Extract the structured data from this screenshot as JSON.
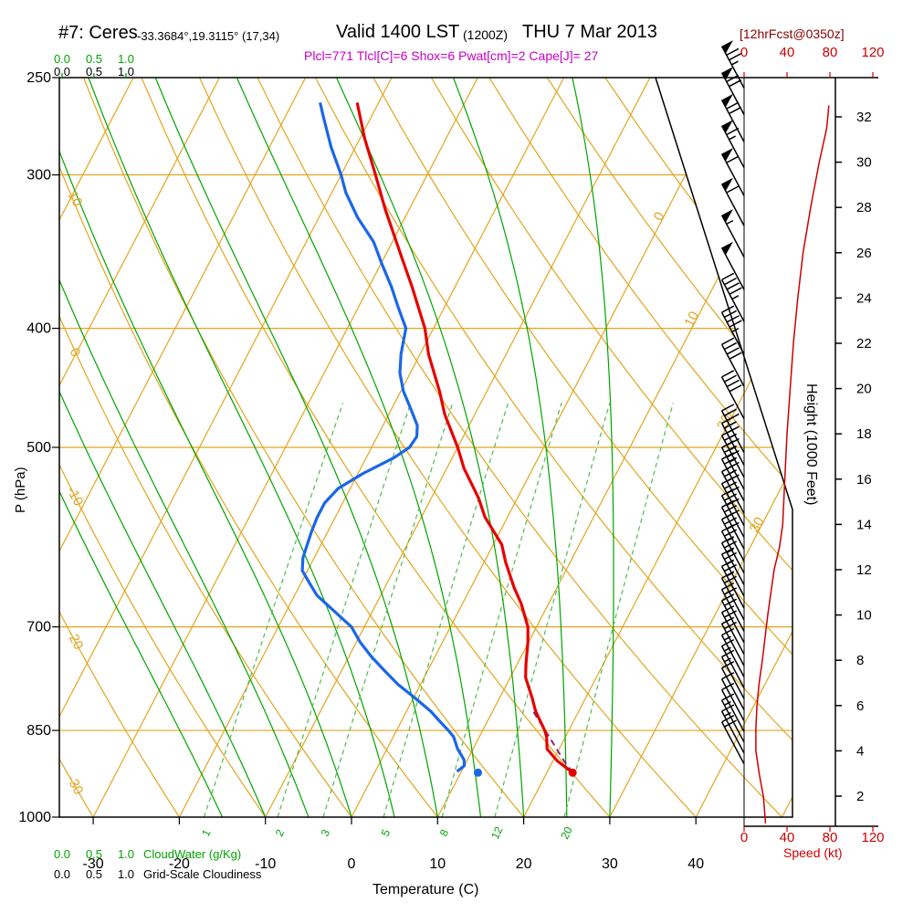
{
  "header": {
    "station": "#7: Ceres",
    "coords": "-33.3684°,19.3115° (17,34)",
    "valid": "Valid 1400 LST",
    "valid_z": "(1200Z)",
    "valid_date": "THU 7 Mar 2013",
    "fcst": "[12hrFcst@0350z]",
    "params": "Plcl=771 Tlcl[C]=6 Shox=6 Pwat[cm]=2 Cape[J]= 27"
  },
  "axes": {
    "pressure_label": "P (hPa)",
    "pressure_ticks": [
      250,
      300,
      400,
      500,
      700,
      850,
      1000
    ],
    "temp_label": "Temperature (C)",
    "temp_ticks": [
      -30,
      -20,
      -10,
      0,
      10,
      20,
      30,
      40
    ],
    "height_label": "Height (1000 Feet)",
    "height_ticks": [
      2,
      4,
      6,
      8,
      10,
      12,
      14,
      16,
      18,
      20,
      22,
      24,
      26,
      28,
      30,
      32
    ],
    "speed_label": "Speed (kt)",
    "speed_ticks": [
      0,
      40,
      80,
      120
    ],
    "cloud_scale_values": [
      "0.0",
      "0.5",
      "1.0"
    ],
    "cloudwater_label": "CloudWater (g/Kg)",
    "cloudiness_label": "Grid-Scale Cloudiness"
  },
  "colors": {
    "grid_orange": "#E2A51F",
    "moist_green": "#00A400",
    "mixing_green": "#4FBB4F",
    "temp_red": "#E60000",
    "dew_blue": "#1A66E8",
    "speed_red": "#CC0000",
    "parcel_purple": "#7B2D8B",
    "magenta": "#C800C8",
    "maroon": "#8B0000"
  },
  "chart_data": {
    "type": "line",
    "chart_kind": "skew-t log-p atmospheric sounding",
    "pressure_range_hPa": [
      250,
      1000
    ],
    "isotherm_values_C": [
      -90,
      -80,
      -70,
      -60,
      -50,
      -40,
      -30,
      -20,
      -10,
      0,
      10,
      20,
      30,
      40,
      50
    ],
    "isotherm_label_values": [
      0,
      10,
      20,
      30
    ],
    "dry_adiabat_values_C": [
      -30,
      -20,
      -10,
      0,
      10,
      20,
      30,
      40,
      50,
      60,
      70,
      80,
      90,
      100,
      110,
      120
    ],
    "dry_adiabat_label_values": [
      10,
      0,
      -10,
      -20,
      -30
    ],
    "moist_adiabat_values_C": [
      -15,
      -10,
      -5,
      0,
      5,
      10,
      15,
      20,
      25,
      30
    ],
    "mixing_ratio_values_gkg": [
      1,
      2,
      3,
      5,
      8,
      12,
      20
    ],
    "temperature_profile_p_T": [
      [
        920,
        23
      ],
      [
        900,
        20.5
      ],
      [
        880,
        18.6
      ],
      [
        860,
        17.8
      ],
      [
        850,
        17.2
      ],
      [
        820,
        15
      ],
      [
        800,
        13.8
      ],
      [
        770,
        11.8
      ],
      [
        750,
        11
      ],
      [
        720,
        9.9
      ],
      [
        700,
        9
      ],
      [
        670,
        6.8
      ],
      [
        650,
        5
      ],
      [
        620,
        2.5
      ],
      [
        600,
        1
      ],
      [
        570,
        -2.6
      ],
      [
        550,
        -4.5
      ],
      [
        520,
        -8
      ],
      [
        500,
        -10
      ],
      [
        470,
        -13.5
      ],
      [
        450,
        -15.5
      ],
      [
        420,
        -19
      ],
      [
        400,
        -21
      ],
      [
        370,
        -25
      ],
      [
        350,
        -28
      ],
      [
        320,
        -32.8
      ],
      [
        300,
        -36
      ],
      [
        280,
        -39.5
      ],
      [
        262,
        -42.5
      ]
    ],
    "dewpoint_profile_p_T": [
      [
        918,
        9.5
      ],
      [
        908,
        10
      ],
      [
        898,
        9.6
      ],
      [
        880,
        8.2
      ],
      [
        860,
        7
      ],
      [
        850,
        6
      ],
      [
        835,
        4.4
      ],
      [
        820,
        2.8
      ],
      [
        800,
        0.2
      ],
      [
        780,
        -2.6
      ],
      [
        760,
        -5
      ],
      [
        740,
        -7.4
      ],
      [
        720,
        -9.6
      ],
      [
        700,
        -11.5
      ],
      [
        680,
        -14.4
      ],
      [
        660,
        -17.4
      ],
      [
        645,
        -19
      ],
      [
        630,
        -20.6
      ],
      [
        615,
        -21.3
      ],
      [
        600,
        -21.6
      ],
      [
        585,
        -21.9
      ],
      [
        570,
        -22.1
      ],
      [
        555,
        -22.1
      ],
      [
        540,
        -21.4
      ],
      [
        525,
        -19.4
      ],
      [
        510,
        -16.8
      ],
      [
        500,
        -15.6
      ],
      [
        490,
        -15.4
      ],
      [
        480,
        -16
      ],
      [
        465,
        -17.8
      ],
      [
        450,
        -19.7
      ],
      [
        435,
        -21.2
      ],
      [
        420,
        -22.2
      ],
      [
        410,
        -22.7
      ],
      [
        400,
        -23.2
      ],
      [
        385,
        -25.3
      ],
      [
        370,
        -27.4
      ],
      [
        355,
        -29.8
      ],
      [
        340,
        -32.2
      ],
      [
        325,
        -35.5
      ],
      [
        310,
        -38.4
      ],
      [
        300,
        -40
      ],
      [
        285,
        -42.8
      ],
      [
        270,
        -45.4
      ],
      [
        262,
        -46.8
      ]
    ],
    "parcel_path_p_T": [
      [
        920,
        23
      ],
      [
        900,
        21.3
      ],
      [
        880,
        19.7
      ],
      [
        860,
        18.1
      ],
      [
        840,
        16.4
      ],
      [
        820,
        14.7
      ]
    ],
    "surface_temperature_point": [
      920,
      23
    ],
    "surface_dewpoint_point": [
      920,
      12
    ],
    "wind_barbs_p_spd": [
      [
        255,
        75
      ],
      [
        268,
        72
      ],
      [
        282,
        70
      ],
      [
        296,
        65
      ],
      [
        312,
        62
      ],
      [
        330,
        58
      ],
      [
        350,
        55
      ],
      [
        372,
        50
      ],
      [
        395,
        47
      ],
      [
        420,
        45
      ],
      [
        446,
        42
      ],
      [
        474,
        40
      ],
      [
        505,
        37
      ],
      [
        517,
        36
      ],
      [
        529,
        35
      ],
      [
        541,
        34
      ],
      [
        553,
        33
      ],
      [
        566,
        32
      ],
      [
        579,
        31
      ],
      [
        592,
        30
      ],
      [
        605,
        29
      ],
      [
        619,
        28
      ],
      [
        633,
        27
      ],
      [
        647,
        26
      ],
      [
        661,
        25
      ],
      [
        676,
        24
      ],
      [
        691,
        22
      ],
      [
        706,
        21
      ],
      [
        721,
        20
      ],
      [
        737,
        19
      ],
      [
        753,
        18
      ],
      [
        769,
        16
      ],
      [
        785,
        15
      ],
      [
        801,
        13
      ],
      [
        818,
        11
      ],
      [
        835,
        11
      ],
      [
        852,
        12
      ],
      [
        869,
        14
      ],
      [
        887,
        17
      ],
      [
        905,
        19
      ]
    ],
    "wind_speed_profile_kft_kt": [
      [
        0.8,
        20
      ],
      [
        2,
        18
      ],
      [
        3,
        14
      ],
      [
        4,
        11
      ],
      [
        5,
        11
      ],
      [
        6,
        12
      ],
      [
        7,
        14
      ],
      [
        8,
        17
      ],
      [
        10,
        22
      ],
      [
        12,
        28
      ],
      [
        13,
        33
      ],
      [
        14,
        36
      ],
      [
        16,
        38
      ],
      [
        18,
        40
      ],
      [
        20,
        43
      ],
      [
        22,
        46
      ],
      [
        24,
        50
      ],
      [
        26,
        55
      ],
      [
        28,
        62
      ],
      [
        30,
        70
      ],
      [
        31.5,
        77
      ],
      [
        32.5,
        79
      ]
    ]
  }
}
